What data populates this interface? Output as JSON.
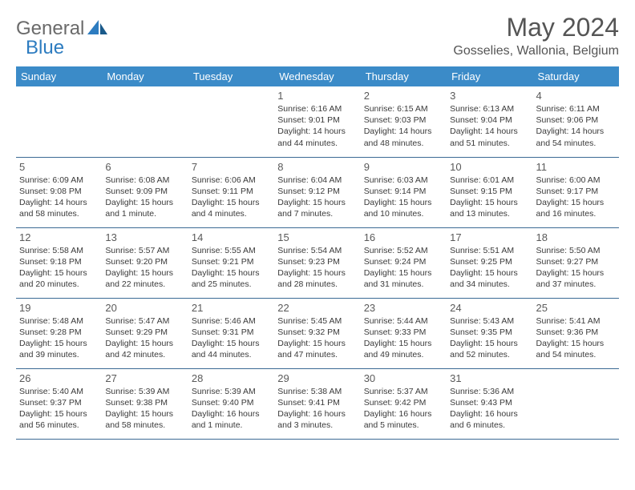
{
  "logo": {
    "text1": "General",
    "text2": "Blue"
  },
  "title": "May 2024",
  "location": "Gosselies, Wallonia, Belgium",
  "colors": {
    "header_bg": "#3b8bc8",
    "header_text": "#ffffff",
    "border": "#3b6a94",
    "logo_gray": "#6a6a6a",
    "logo_blue": "#2d7cc0",
    "text": "#323232",
    "title_gray": "#555555"
  },
  "day_headers": [
    "Sunday",
    "Monday",
    "Tuesday",
    "Wednesday",
    "Thursday",
    "Friday",
    "Saturday"
  ],
  "weeks": [
    [
      null,
      null,
      null,
      {
        "n": "1",
        "sr": "6:16 AM",
        "ss": "9:01 PM",
        "dl": "14 hours and 44 minutes."
      },
      {
        "n": "2",
        "sr": "6:15 AM",
        "ss": "9:03 PM",
        "dl": "14 hours and 48 minutes."
      },
      {
        "n": "3",
        "sr": "6:13 AM",
        "ss": "9:04 PM",
        "dl": "14 hours and 51 minutes."
      },
      {
        "n": "4",
        "sr": "6:11 AM",
        "ss": "9:06 PM",
        "dl": "14 hours and 54 minutes."
      }
    ],
    [
      {
        "n": "5",
        "sr": "6:09 AM",
        "ss": "9:08 PM",
        "dl": "14 hours and 58 minutes."
      },
      {
        "n": "6",
        "sr": "6:08 AM",
        "ss": "9:09 PM",
        "dl": "15 hours and 1 minute."
      },
      {
        "n": "7",
        "sr": "6:06 AM",
        "ss": "9:11 PM",
        "dl": "15 hours and 4 minutes."
      },
      {
        "n": "8",
        "sr": "6:04 AM",
        "ss": "9:12 PM",
        "dl": "15 hours and 7 minutes."
      },
      {
        "n": "9",
        "sr": "6:03 AM",
        "ss": "9:14 PM",
        "dl": "15 hours and 10 minutes."
      },
      {
        "n": "10",
        "sr": "6:01 AM",
        "ss": "9:15 PM",
        "dl": "15 hours and 13 minutes."
      },
      {
        "n": "11",
        "sr": "6:00 AM",
        "ss": "9:17 PM",
        "dl": "15 hours and 16 minutes."
      }
    ],
    [
      {
        "n": "12",
        "sr": "5:58 AM",
        "ss": "9:18 PM",
        "dl": "15 hours and 20 minutes."
      },
      {
        "n": "13",
        "sr": "5:57 AM",
        "ss": "9:20 PM",
        "dl": "15 hours and 22 minutes."
      },
      {
        "n": "14",
        "sr": "5:55 AM",
        "ss": "9:21 PM",
        "dl": "15 hours and 25 minutes."
      },
      {
        "n": "15",
        "sr": "5:54 AM",
        "ss": "9:23 PM",
        "dl": "15 hours and 28 minutes."
      },
      {
        "n": "16",
        "sr": "5:52 AM",
        "ss": "9:24 PM",
        "dl": "15 hours and 31 minutes."
      },
      {
        "n": "17",
        "sr": "5:51 AM",
        "ss": "9:25 PM",
        "dl": "15 hours and 34 minutes."
      },
      {
        "n": "18",
        "sr": "5:50 AM",
        "ss": "9:27 PM",
        "dl": "15 hours and 37 minutes."
      }
    ],
    [
      {
        "n": "19",
        "sr": "5:48 AM",
        "ss": "9:28 PM",
        "dl": "15 hours and 39 minutes."
      },
      {
        "n": "20",
        "sr": "5:47 AM",
        "ss": "9:29 PM",
        "dl": "15 hours and 42 minutes."
      },
      {
        "n": "21",
        "sr": "5:46 AM",
        "ss": "9:31 PM",
        "dl": "15 hours and 44 minutes."
      },
      {
        "n": "22",
        "sr": "5:45 AM",
        "ss": "9:32 PM",
        "dl": "15 hours and 47 minutes."
      },
      {
        "n": "23",
        "sr": "5:44 AM",
        "ss": "9:33 PM",
        "dl": "15 hours and 49 minutes."
      },
      {
        "n": "24",
        "sr": "5:43 AM",
        "ss": "9:35 PM",
        "dl": "15 hours and 52 minutes."
      },
      {
        "n": "25",
        "sr": "5:41 AM",
        "ss": "9:36 PM",
        "dl": "15 hours and 54 minutes."
      }
    ],
    [
      {
        "n": "26",
        "sr": "5:40 AM",
        "ss": "9:37 PM",
        "dl": "15 hours and 56 minutes."
      },
      {
        "n": "27",
        "sr": "5:39 AM",
        "ss": "9:38 PM",
        "dl": "15 hours and 58 minutes."
      },
      {
        "n": "28",
        "sr": "5:39 AM",
        "ss": "9:40 PM",
        "dl": "16 hours and 1 minute."
      },
      {
        "n": "29",
        "sr": "5:38 AM",
        "ss": "9:41 PM",
        "dl": "16 hours and 3 minutes."
      },
      {
        "n": "30",
        "sr": "5:37 AM",
        "ss": "9:42 PM",
        "dl": "16 hours and 5 minutes."
      },
      {
        "n": "31",
        "sr": "5:36 AM",
        "ss": "9:43 PM",
        "dl": "16 hours and 6 minutes."
      },
      null
    ]
  ],
  "labels": {
    "sunrise": "Sunrise:",
    "sunset": "Sunset:",
    "daylight": "Daylight:"
  }
}
